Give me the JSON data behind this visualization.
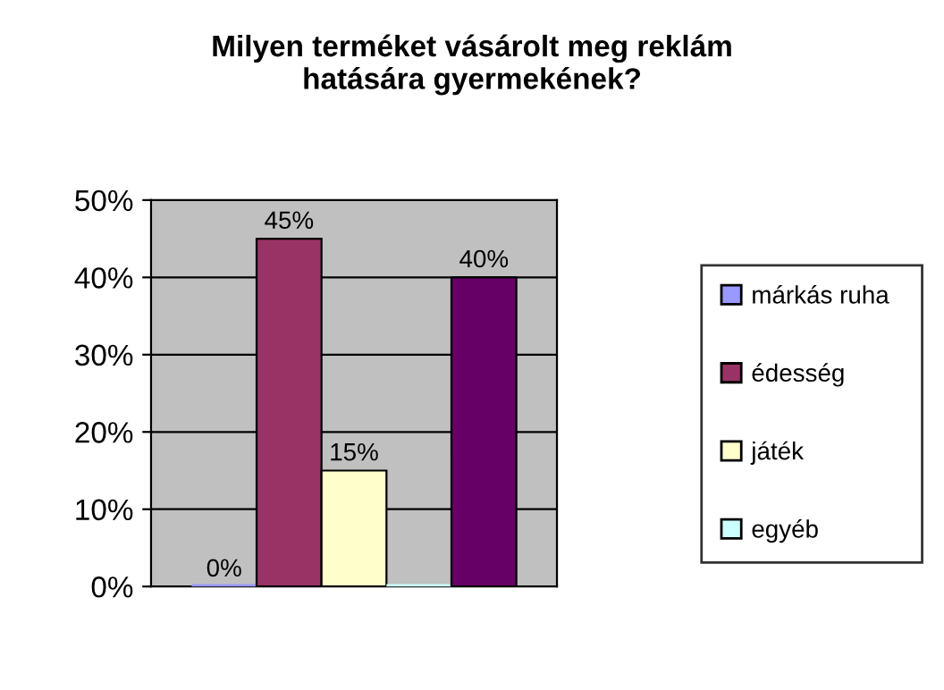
{
  "chart_data": {
    "type": "bar",
    "title": "Milyen terméket vásárolt meg reklám\nhatására gyermekének?",
    "categories": [
      null
    ],
    "series": [
      {
        "name": "márkás ruha",
        "color": "#9999ff",
        "values": [
          0
        ],
        "value_labels": [
          "0%"
        ]
      },
      {
        "name": "édesség",
        "color": "#993366",
        "values": [
          45
        ],
        "value_labels": [
          "45%"
        ]
      },
      {
        "name": "játék",
        "color": "#ffffcc",
        "values": [
          15
        ],
        "value_labels": [
          "15%"
        ]
      },
      {
        "name": "egyéb",
        "color": "#ccffff",
        "values": [
          0
        ],
        "value_labels": [
          null
        ]
      },
      {
        "color": "#660066",
        "values": [
          40
        ],
        "value_labels": [
          "40%"
        ]
      }
    ],
    "ylim": [
      0,
      50
    ],
    "yticks": [
      {
        "value": 0,
        "label": "0%"
      },
      {
        "value": 10,
        "label": "10%"
      },
      {
        "value": 20,
        "label": "20%"
      },
      {
        "value": 30,
        "label": "30%"
      },
      {
        "value": 40,
        "label": "40%"
      },
      {
        "value": 50,
        "label": "50%"
      }
    ],
    "grid": "y",
    "legend": "right"
  }
}
